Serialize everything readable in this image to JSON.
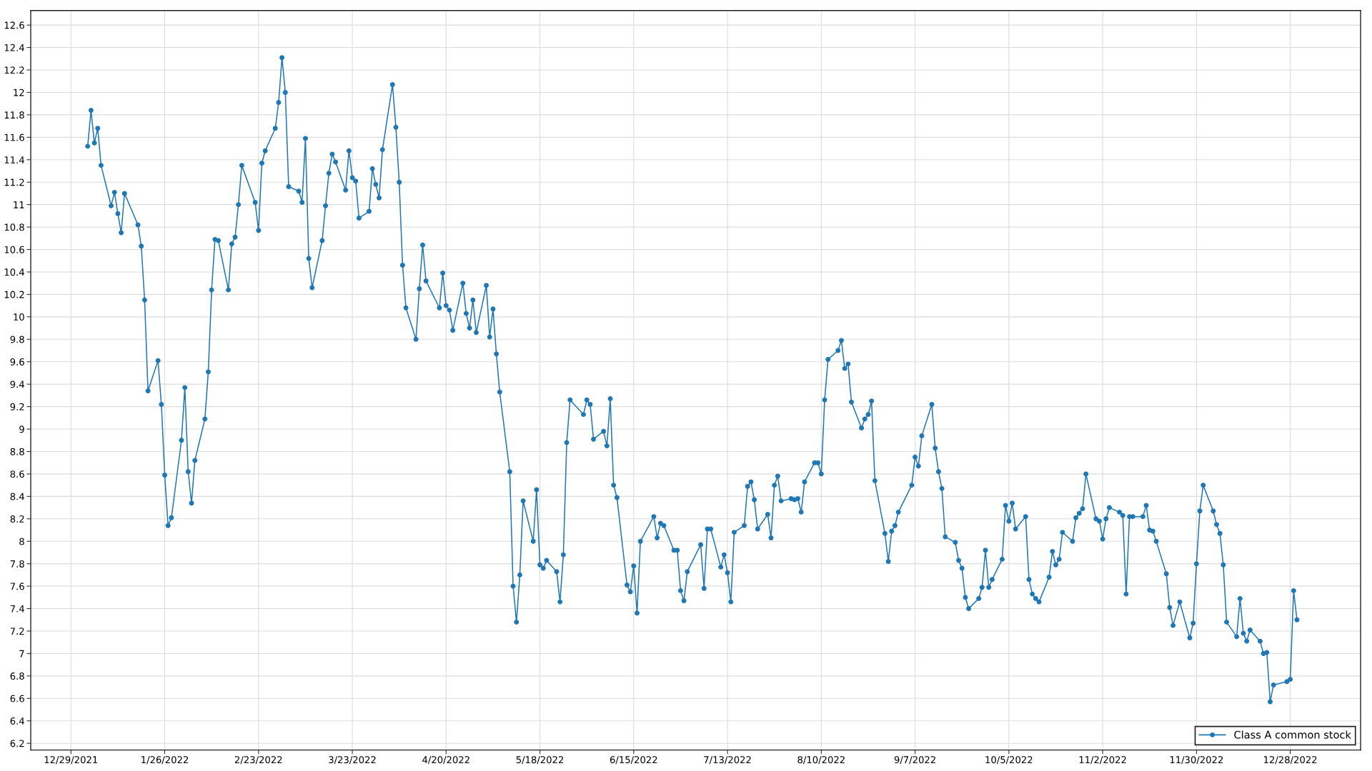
{
  "chart_data": {
    "type": "line",
    "x": [
      "2022-01-03",
      "2022-01-04",
      "2022-01-05",
      "2022-01-06",
      "2022-01-07",
      "2022-01-10",
      "2022-01-11",
      "2022-01-12",
      "2022-01-13",
      "2022-01-14",
      "2022-01-18",
      "2022-01-19",
      "2022-01-20",
      "2022-01-21",
      "2022-01-24",
      "2022-01-25",
      "2022-01-26",
      "2022-01-27",
      "2022-01-28",
      "2022-01-31",
      "2022-02-01",
      "2022-02-02",
      "2022-02-03",
      "2022-02-04",
      "2022-02-07",
      "2022-02-08",
      "2022-02-09",
      "2022-02-10",
      "2022-02-11",
      "2022-02-14",
      "2022-02-15",
      "2022-02-16",
      "2022-02-17",
      "2022-02-18",
      "2022-02-22",
      "2022-02-23",
      "2022-02-24",
      "2022-02-25",
      "2022-02-28",
      "2022-03-01",
      "2022-03-02",
      "2022-03-03",
      "2022-03-04",
      "2022-03-07",
      "2022-03-08",
      "2022-03-09",
      "2022-03-10",
      "2022-03-11",
      "2022-03-14",
      "2022-03-15",
      "2022-03-16",
      "2022-03-17",
      "2022-03-18",
      "2022-03-21",
      "2022-03-22",
      "2022-03-23",
      "2022-03-24",
      "2022-03-25",
      "2022-03-28",
      "2022-03-29",
      "2022-03-30",
      "2022-03-31",
      "2022-04-01",
      "2022-04-04",
      "2022-04-05",
      "2022-04-06",
      "2022-04-07",
      "2022-04-08",
      "2022-04-11",
      "2022-04-12",
      "2022-04-13",
      "2022-04-14",
      "2022-04-18",
      "2022-04-19",
      "2022-04-20",
      "2022-04-21",
      "2022-04-22",
      "2022-04-25",
      "2022-04-26",
      "2022-04-27",
      "2022-04-28",
      "2022-04-29",
      "2022-05-02",
      "2022-05-03",
      "2022-05-04",
      "2022-05-05",
      "2022-05-06",
      "2022-05-09",
      "2022-05-10",
      "2022-05-11",
      "2022-05-12",
      "2022-05-13",
      "2022-05-16",
      "2022-05-17",
      "2022-05-18",
      "2022-05-19",
      "2022-05-20",
      "2022-05-23",
      "2022-05-24",
      "2022-05-25",
      "2022-05-26",
      "2022-05-27",
      "2022-05-31",
      "2022-06-01",
      "2022-06-02",
      "2022-06-03",
      "2022-06-06",
      "2022-06-07",
      "2022-06-08",
      "2022-06-09",
      "2022-06-10",
      "2022-06-13",
      "2022-06-14",
      "2022-06-15",
      "2022-06-16",
      "2022-06-17",
      "2022-06-21",
      "2022-06-22",
      "2022-06-23",
      "2022-06-24",
      "2022-06-27",
      "2022-06-28",
      "2022-06-29",
      "2022-06-30",
      "2022-07-01",
      "2022-07-05",
      "2022-07-06",
      "2022-07-07",
      "2022-07-08",
      "2022-07-11",
      "2022-07-12",
      "2022-07-13",
      "2022-07-14",
      "2022-07-15",
      "2022-07-18",
      "2022-07-19",
      "2022-07-20",
      "2022-07-21",
      "2022-07-22",
      "2022-07-25",
      "2022-07-26",
      "2022-07-27",
      "2022-07-28",
      "2022-07-29",
      "2022-08-01",
      "2022-08-02",
      "2022-08-03",
      "2022-08-04",
      "2022-08-05",
      "2022-08-08",
      "2022-08-09",
      "2022-08-10",
      "2022-08-11",
      "2022-08-12",
      "2022-08-15",
      "2022-08-16",
      "2022-08-17",
      "2022-08-18",
      "2022-08-19",
      "2022-08-22",
      "2022-08-23",
      "2022-08-24",
      "2022-08-25",
      "2022-08-26",
      "2022-08-29",
      "2022-08-30",
      "2022-08-31",
      "2022-09-01",
      "2022-09-02",
      "2022-09-06",
      "2022-09-07",
      "2022-09-08",
      "2022-09-09",
      "2022-09-12",
      "2022-09-13",
      "2022-09-14",
      "2022-09-15",
      "2022-09-16",
      "2022-09-19",
      "2022-09-20",
      "2022-09-21",
      "2022-09-22",
      "2022-09-23",
      "2022-09-26",
      "2022-09-27",
      "2022-09-28",
      "2022-09-29",
      "2022-09-30",
      "2022-10-03",
      "2022-10-04",
      "2022-10-05",
      "2022-10-06",
      "2022-10-07",
      "2022-10-10",
      "2022-10-11",
      "2022-10-12",
      "2022-10-13",
      "2022-10-14",
      "2022-10-17",
      "2022-10-18",
      "2022-10-19",
      "2022-10-20",
      "2022-10-21",
      "2022-10-24",
      "2022-10-25",
      "2022-10-26",
      "2022-10-27",
      "2022-10-28",
      "2022-10-31",
      "2022-11-01",
      "2022-11-02",
      "2022-11-03",
      "2022-11-04",
      "2022-11-07",
      "2022-11-08",
      "2022-11-09",
      "2022-11-10",
      "2022-11-11",
      "2022-11-14",
      "2022-11-15",
      "2022-11-16",
      "2022-11-17",
      "2022-11-18",
      "2022-11-21",
      "2022-11-22",
      "2022-11-23",
      "2022-11-25",
      "2022-11-28",
      "2022-11-29",
      "2022-11-30",
      "2022-12-01",
      "2022-12-02",
      "2022-12-05",
      "2022-12-06",
      "2022-12-07",
      "2022-12-08",
      "2022-12-09",
      "2022-12-12",
      "2022-12-13",
      "2022-12-14",
      "2022-12-15",
      "2022-12-16",
      "2022-12-19",
      "2022-12-20",
      "2022-12-21",
      "2022-12-22",
      "2022-12-23",
      "2022-12-27",
      "2022-12-28",
      "2022-12-29",
      "2022-12-30"
    ],
    "series": [
      {
        "name": "Class A common stock",
        "color": "#1f77b4",
        "values": [
          11.52,
          11.84,
          11.55,
          11.68,
          11.35,
          10.99,
          11.11,
          10.92,
          10.75,
          11.1,
          10.82,
          10.63,
          10.15,
          9.34,
          9.61,
          9.22,
          8.59,
          8.14,
          8.21,
          8.9,
          9.37,
          8.62,
          8.34,
          8.72,
          9.09,
          9.51,
          10.24,
          10.69,
          10.68,
          10.24,
          10.65,
          10.71,
          11.0,
          11.35,
          11.02,
          10.77,
          11.37,
          11.48,
          11.68,
          11.91,
          12.31,
          12.0,
          11.16,
          11.12,
          11.02,
          11.59,
          10.52,
          10.26,
          10.68,
          10.99,
          11.28,
          11.45,
          11.38,
          11.13,
          11.48,
          11.24,
          11.21,
          10.88,
          10.94,
          11.32,
          11.18,
          11.06,
          11.49,
          12.07,
          11.69,
          11.2,
          10.46,
          10.08,
          9.8,
          10.25,
          10.64,
          10.32,
          10.08,
          10.39,
          10.1,
          10.06,
          9.88,
          10.3,
          10.03,
          9.9,
          10.15,
          9.86,
          10.28,
          9.82,
          10.07,
          9.67,
          9.33,
          8.62,
          7.6,
          7.28,
          7.7,
          8.36,
          8.0,
          8.46,
          7.79,
          7.76,
          7.83,
          7.73,
          7.46,
          7.88,
          8.88,
          9.26,
          9.13,
          9.26,
          9.22,
          8.91,
          8.98,
          8.85,
          9.27,
          8.5,
          8.39,
          7.61,
          7.55,
          7.78,
          7.36,
          8.0,
          8.22,
          8.03,
          8.16,
          8.14,
          7.92,
          7.92,
          7.56,
          7.47,
          7.73,
          7.97,
          7.58,
          8.11,
          8.11,
          7.77,
          7.88,
          7.72,
          7.46,
          8.08,
          8.14,
          8.49,
          8.53,
          8.37,
          8.11,
          8.24,
          8.03,
          8.5,
          8.58,
          8.36,
          8.38,
          8.37,
          8.38,
          8.26,
          8.53,
          8.7,
          8.7,
          8.6,
          9.26,
          9.62,
          9.7,
          9.79,
          9.54,
          9.58,
          9.24,
          9.01,
          9.09,
          9.13,
          9.25,
          8.54,
          8.07,
          7.82,
          8.09,
          8.14,
          8.26,
          8.5,
          8.75,
          8.67,
          8.94,
          9.22,
          8.83,
          8.62,
          8.47,
          8.04,
          7.99,
          7.83,
          7.76,
          7.5,
          7.4,
          7.49,
          7.59,
          7.92,
          7.59,
          7.66,
          7.84,
          8.32,
          8.18,
          8.34,
          8.11,
          8.22,
          7.66,
          7.53,
          7.49,
          7.46,
          7.68,
          7.91,
          7.79,
          7.84,
          8.08,
          8.0,
          8.21,
          8.25,
          8.29,
          8.6,
          8.2,
          8.18,
          8.02,
          8.2,
          8.3,
          8.26,
          8.23,
          7.53,
          8.22,
          8.22,
          8.22,
          8.32,
          8.1,
          8.09,
          8.0,
          7.71,
          7.41,
          7.25,
          7.46,
          7.14,
          7.27,
          7.8,
          8.27,
          8.5,
          8.27,
          8.15,
          8.07,
          7.79,
          7.28,
          7.15,
          7.49,
          7.18,
          7.11,
          7.21,
          7.11,
          7.0,
          7.01,
          6.57,
          6.72,
          6.75,
          6.77,
          7.56,
          7.3
        ]
      }
    ],
    "xlim": [
      "2021-12-17",
      "2023-01-18"
    ],
    "xticks": [
      {
        "value": "2021-12-29",
        "label": "12/29/2021"
      },
      {
        "value": "2022-01-26",
        "label": "1/26/2022"
      },
      {
        "value": "2022-02-23",
        "label": "2/23/2022"
      },
      {
        "value": "2022-03-23",
        "label": "3/23/2022"
      },
      {
        "value": "2022-04-20",
        "label": "4/20/2022"
      },
      {
        "value": "2022-05-18",
        "label": "5/18/2022"
      },
      {
        "value": "2022-06-15",
        "label": "6/15/2022"
      },
      {
        "value": "2022-07-13",
        "label": "7/13/2022"
      },
      {
        "value": "2022-08-10",
        "label": "8/10/2022"
      },
      {
        "value": "2022-09-07",
        "label": "9/7/2022"
      },
      {
        "value": "2022-10-05",
        "label": "10/5/2022"
      },
      {
        "value": "2022-11-02",
        "label": "11/2/2022"
      },
      {
        "value": "2022-11-30",
        "label": "11/30/2022"
      },
      {
        "value": "2022-12-28",
        "label": "12/28/2022"
      }
    ],
    "ylim": [
      6.14,
      12.73
    ],
    "yticks": [
      6.2,
      6.4,
      6.6,
      6.8,
      7,
      7.2,
      7.4,
      7.6,
      7.8,
      8,
      8.2,
      8.4,
      8.6,
      8.8,
      9,
      9.2,
      9.4,
      9.6,
      9.8,
      10,
      10.2,
      10.4,
      10.6,
      10.8,
      11,
      11.2,
      11.4,
      11.6,
      11.8,
      12,
      12.2,
      12.4,
      12.6
    ],
    "grid": true,
    "legend": "bottom right",
    "marker": "circle",
    "line_style": "solid"
  }
}
